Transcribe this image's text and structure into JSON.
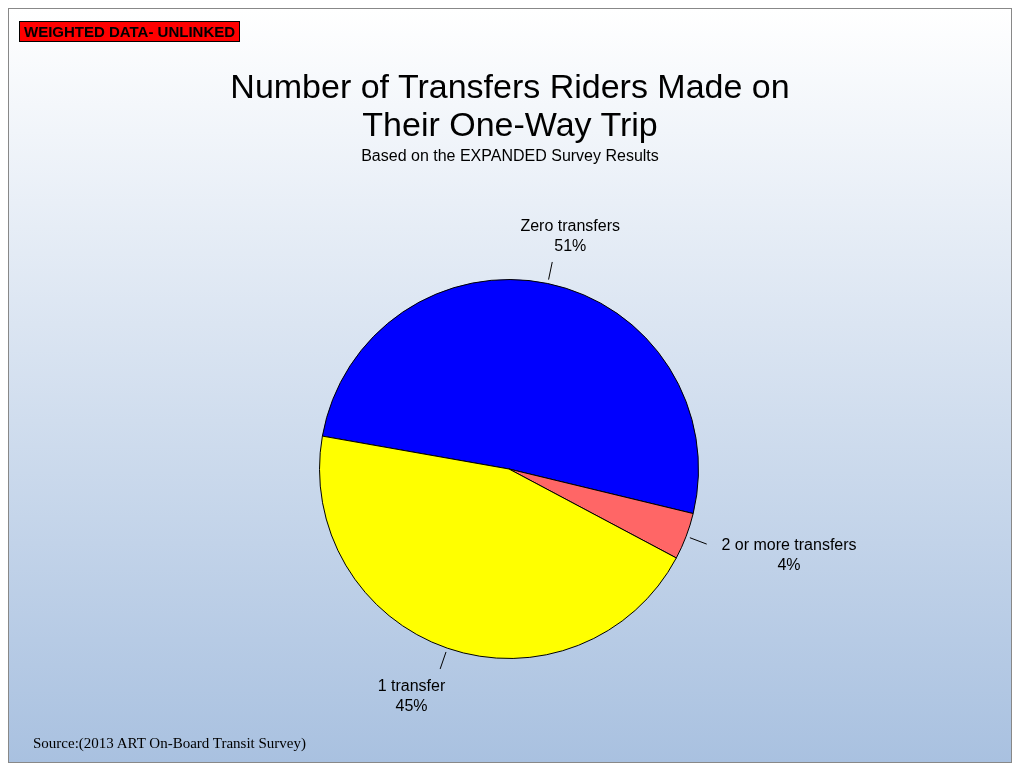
{
  "chart_data": {
    "type": "pie",
    "title": "Number of Transfers Riders Made on Their One-Way Trip",
    "subtitle": "Based on the EXPANDED Survey Results",
    "categories": [
      "Zero transfers",
      "2 or more transfers",
      "1 transfer"
    ],
    "values": [
      51,
      4,
      45
    ],
    "value_labels": [
      "51%",
      "4%",
      "45%"
    ],
    "colors": [
      "#0000ff",
      "#ff6666",
      "#ffff00"
    ],
    "legend": false,
    "annotations": [
      "WEIGHTED DATA- UNLINKED",
      "Source:(2013 ART On-Board Transit Survey)"
    ]
  }
}
